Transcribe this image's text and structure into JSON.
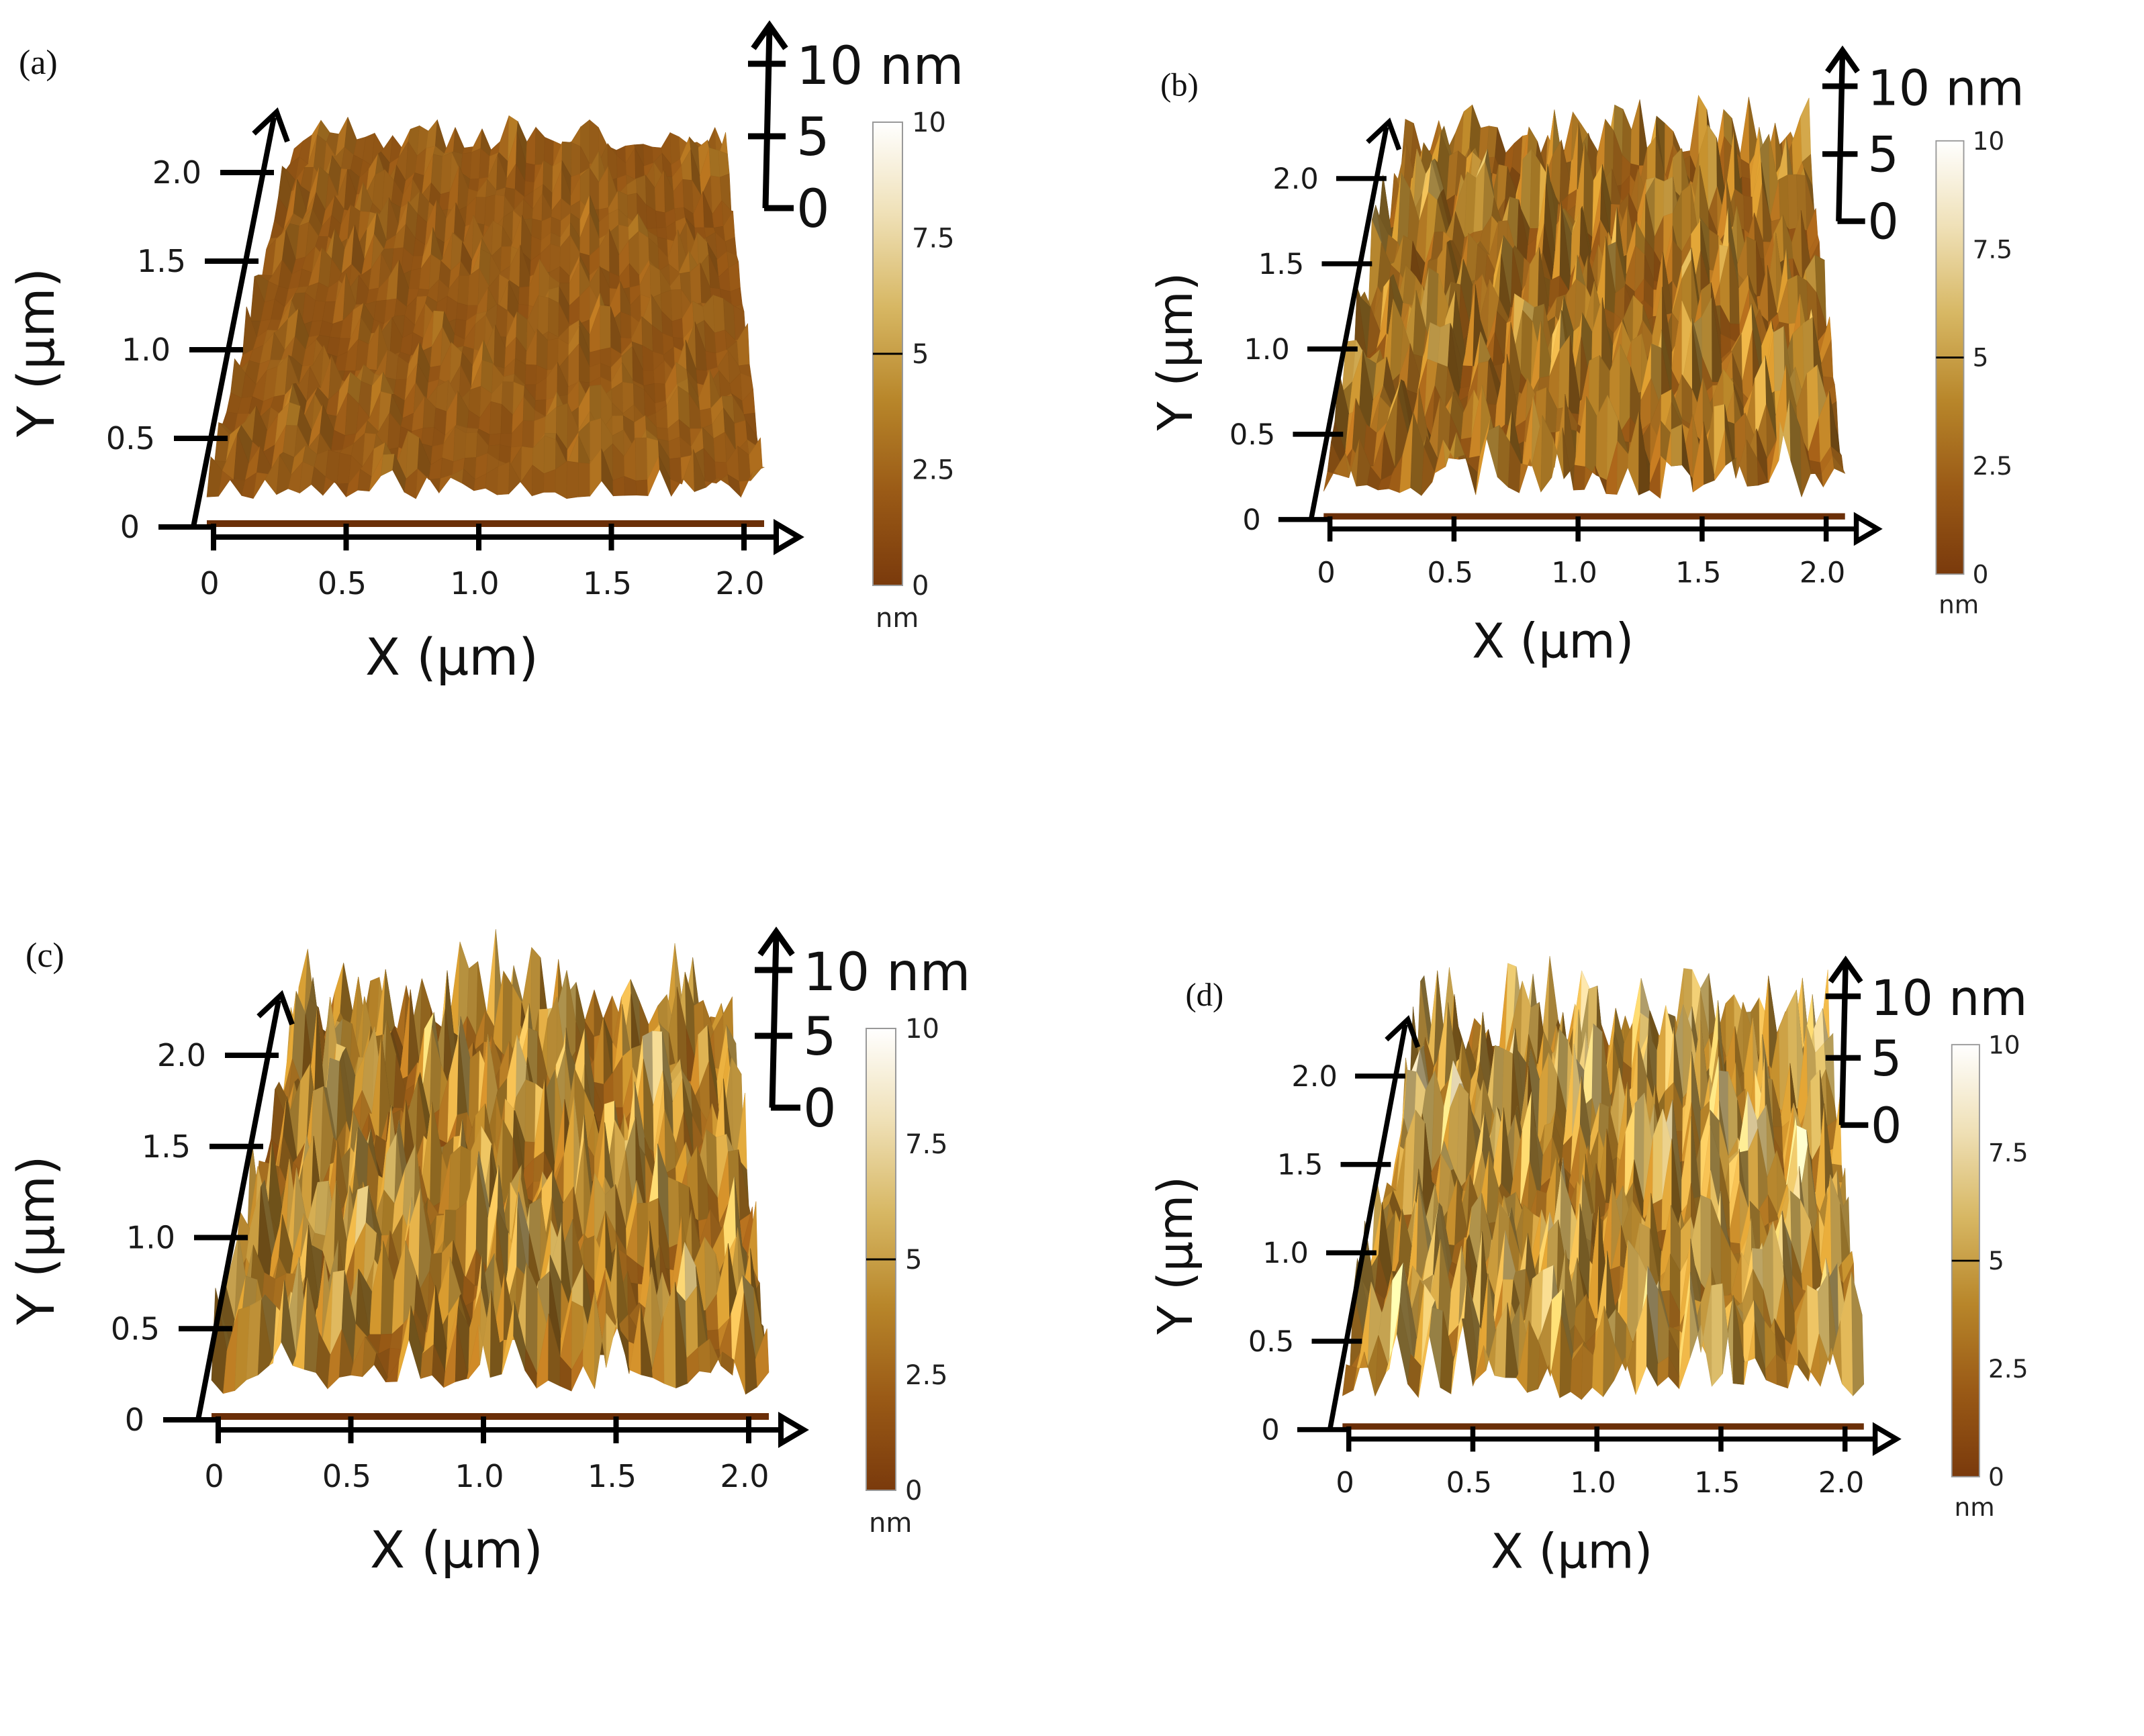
{
  "figure": {
    "description_units": "nm",
    "panels": [
      "(a)",
      "(b)",
      "(c)",
      "(d)"
    ]
  },
  "colors": {
    "colormap": [
      "#7a3a0c",
      "#9a5a16",
      "#b8862a",
      "#d7b763",
      "#efe0b6",
      "#ffffff"
    ],
    "axis": "#000000"
  },
  "chart_data": [
    {
      "type": "surface3d",
      "panel_label": "(a)",
      "xlabel": "X (μm)",
      "ylabel": "Y (μm)",
      "x_ticks": [
        "0",
        "0.5",
        "1.0",
        "1.5",
        "2.0"
      ],
      "y_ticks": [
        "0",
        "0.5",
        "1.0",
        "1.5",
        "2.0"
      ],
      "xlim": [
        0,
        2.0
      ],
      "ylim": [
        0,
        2.0
      ],
      "z_scale": {
        "ticks": [
          "0",
          "5"
        ],
        "top_label": "10 nm",
        "range": [
          0,
          10
        ]
      },
      "colorbar": {
        "ticks": [
          "0",
          "2.5",
          "5",
          "7.5",
          "10"
        ],
        "unit": "nm",
        "range": [
          0,
          10
        ]
      },
      "roughness_amplitude_nm": 1.0,
      "mean_height_nm": 2.2
    },
    {
      "type": "surface3d",
      "panel_label": "(b)",
      "xlabel": "X (μm)",
      "ylabel": "Y (μm)",
      "x_ticks": [
        "0",
        "0.5",
        "1.0",
        "1.5",
        "2.0"
      ],
      "y_ticks": [
        "0",
        "0.5",
        "1.0",
        "1.5",
        "2.0"
      ],
      "xlim": [
        0,
        2.0
      ],
      "ylim": [
        0,
        2.0
      ],
      "z_scale": {
        "ticks": [
          "0",
          "5"
        ],
        "top_label": "10 nm",
        "range": [
          0,
          10
        ]
      },
      "colorbar": {
        "ticks": [
          "0",
          "2.5",
          "5",
          "7.5",
          "10"
        ],
        "unit": "nm",
        "range": [
          0,
          10
        ]
      },
      "roughness_amplitude_nm": 2.5,
      "mean_height_nm": 3.0
    },
    {
      "type": "surface3d",
      "panel_label": "(c)",
      "xlabel": "X (μm)",
      "ylabel": "Y (μm)",
      "x_ticks": [
        "0",
        "0.5",
        "1.0",
        "1.5",
        "2.0"
      ],
      "y_ticks": [
        "0",
        "0.5",
        "1.0",
        "1.5",
        "2.0"
      ],
      "xlim": [
        0,
        2.0
      ],
      "ylim": [
        0,
        2.0
      ],
      "z_scale": {
        "ticks": [
          "0",
          "5"
        ],
        "top_label": "10 nm",
        "range": [
          0,
          10
        ]
      },
      "colorbar": {
        "ticks": [
          "0",
          "2.5",
          "5",
          "7.5",
          "10"
        ],
        "unit": "nm",
        "range": [
          0,
          10
        ]
      },
      "roughness_amplitude_nm": 3.0,
      "mean_height_nm": 3.6
    },
    {
      "type": "surface3d",
      "panel_label": "(d)",
      "xlabel": "X (μm)",
      "ylabel": "Y (μm)",
      "x_ticks": [
        "0",
        "0.5",
        "1.0",
        "1.5",
        "2.0"
      ],
      "y_ticks": [
        "0",
        "0.5",
        "1.0",
        "1.5",
        "2.0"
      ],
      "xlim": [
        0,
        2.0
      ],
      "ylim": [
        0,
        2.0
      ],
      "z_scale": {
        "ticks": [
          "0",
          "5"
        ],
        "top_label": "10 nm",
        "range": [
          0,
          10
        ]
      },
      "colorbar": {
        "ticks": [
          "0",
          "2.5",
          "5",
          "7.5",
          "10"
        ],
        "unit": "nm",
        "range": [
          0,
          10
        ]
      },
      "roughness_amplitude_nm": 3.3,
      "mean_height_nm": 4.2
    }
  ]
}
